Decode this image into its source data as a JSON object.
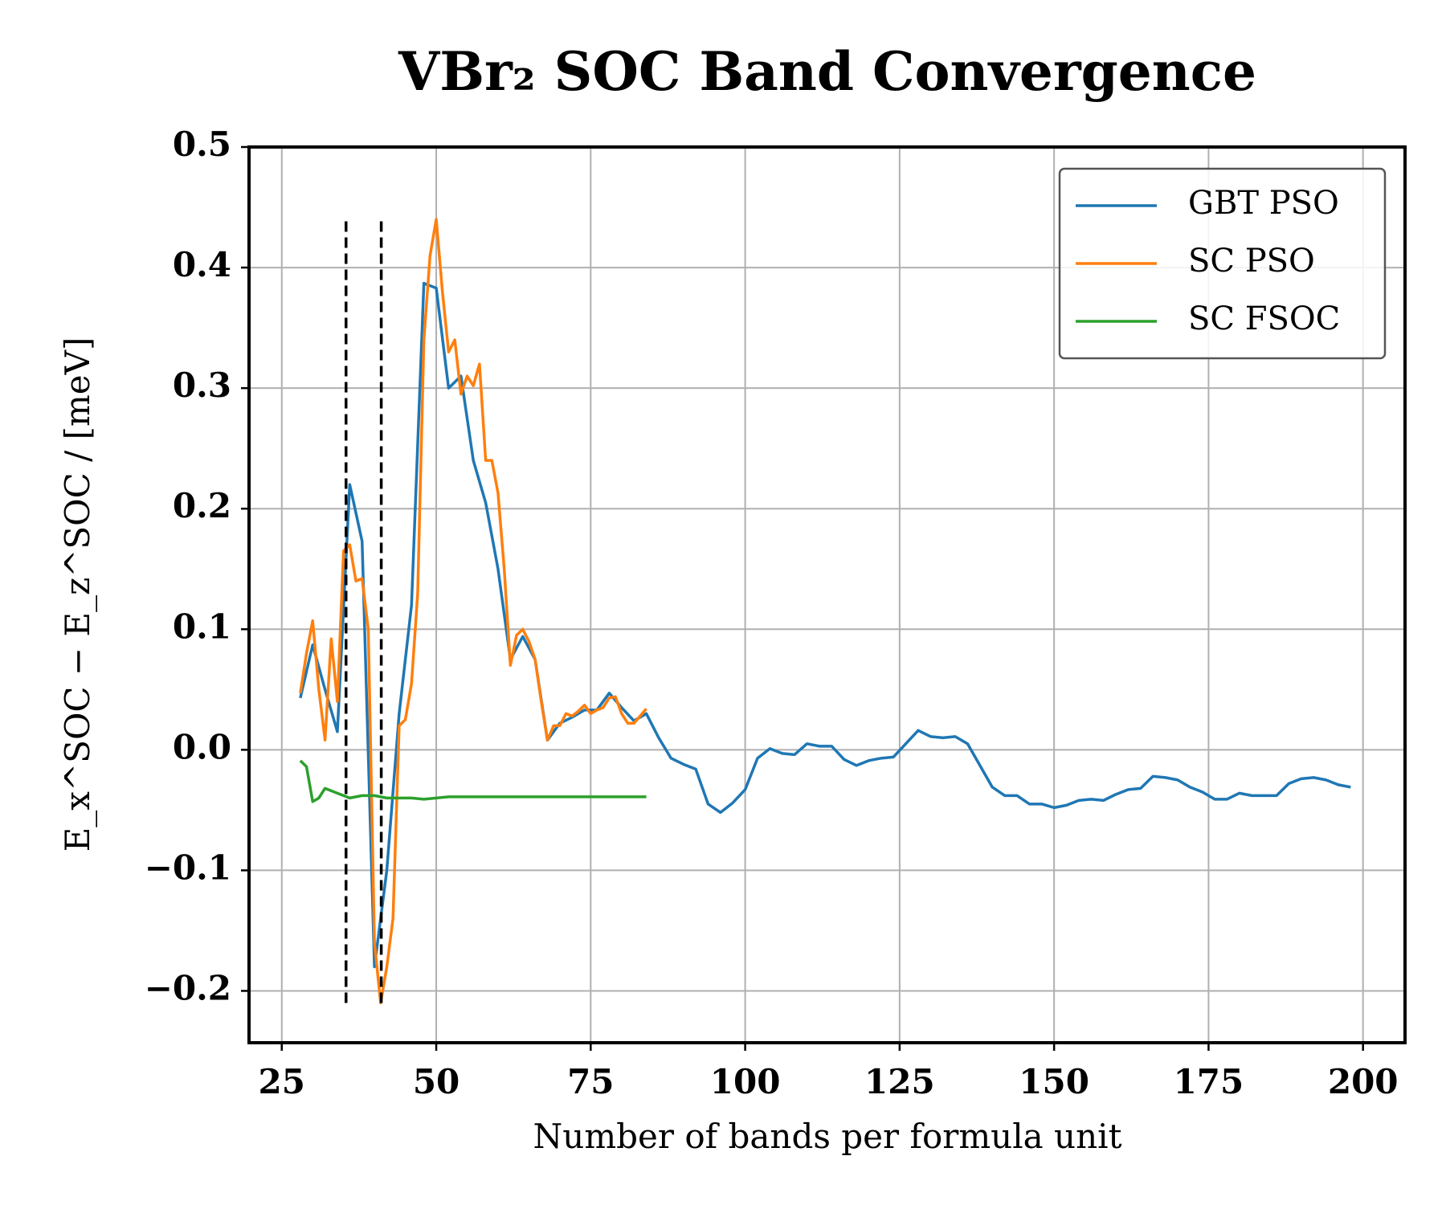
{
  "chart_data": {
    "type": "line",
    "title": "VBr₂ SOC Band Convergence",
    "xlabel": "Number of bands per formula unit",
    "ylabel": "E_x^SOC − E_z^SOC / [meV]",
    "xlim": [
      19.7,
      206.8
    ],
    "ylim": [
      -0.243,
      0.5
    ],
    "xticks": [
      25,
      50,
      75,
      100,
      125,
      150,
      175,
      200
    ],
    "yticks": [
      {
        "value": -0.2,
        "label": "−0.2"
      },
      {
        "value": -0.1,
        "label": "−0.1"
      },
      {
        "value": 0,
        "label": "0.0"
      },
      0.1,
      0.2,
      0.3,
      0.4,
      0.5
    ],
    "grid": true,
    "legend": "upper right",
    "vlines": {
      "x": [
        35.4,
        41.1
      ],
      "range": [
        -0.21,
        0.44
      ],
      "color": "#000000"
    },
    "series": [
      {
        "name": "GBT PSO",
        "color": "#1f77b4",
        "x": [
          28,
          30,
          32,
          34,
          36,
          38,
          40,
          42,
          44,
          46,
          48,
          50,
          52,
          54,
          56,
          58,
          60,
          62,
          64,
          66,
          68,
          70,
          72,
          74,
          76,
          78,
          80,
          82,
          84,
          86,
          88,
          90,
          92,
          94,
          96,
          98,
          100,
          102,
          104,
          106,
          108,
          110,
          112,
          114,
          116,
          118,
          120,
          122,
          124,
          126,
          128,
          130,
          132,
          134,
          136,
          138,
          140,
          142,
          144,
          146,
          148,
          150,
          152,
          154,
          156,
          158,
          160,
          162,
          164,
          166,
          168,
          170,
          172,
          174,
          176,
          178,
          180,
          182,
          184,
          186,
          188,
          190,
          192,
          194,
          196,
          198
        ],
        "values": [
          0.043,
          0.087,
          0.05,
          0.015,
          0.22,
          0.173,
          -0.18,
          -0.1,
          0.03,
          0.12,
          0.387,
          0.383,
          0.3,
          0.31,
          0.24,
          0.205,
          0.15,
          0.075,
          0.094,
          0.075,
          0.008,
          0.022,
          0.027,
          0.033,
          0.033,
          0.047,
          0.035,
          0.024,
          0.03,
          0.01,
          -0.007,
          -0.012,
          -0.016,
          -0.045,
          -0.052,
          -0.044,
          -0.033,
          -0.007,
          0.001,
          -0.003,
          -0.004,
          0.005,
          0.003,
          0.003,
          -0.008,
          -0.013,
          -0.009,
          -0.007,
          -0.006,
          0.005,
          0.016,
          0.011,
          0.01,
          0.011,
          0.005,
          -0.013,
          -0.031,
          -0.038,
          -0.038,
          -0.045,
          -0.045,
          -0.048,
          -0.046,
          -0.042,
          -0.041,
          -0.042,
          -0.037,
          -0.033,
          -0.032,
          -0.022,
          -0.023,
          -0.025,
          -0.031,
          -0.035,
          -0.041,
          -0.041,
          -0.036,
          -0.038,
          -0.038,
          -0.038,
          -0.028,
          -0.024,
          -0.023,
          -0.025,
          -0.029,
          -0.031
        ]
      },
      {
        "name": "SC PSO",
        "color": "#ff7f0e",
        "x": [
          28,
          29,
          30,
          31,
          32,
          33,
          34,
          35,
          36,
          37,
          38,
          39,
          40,
          41,
          42,
          43,
          44,
          45,
          46,
          47,
          48,
          49,
          50,
          51,
          52,
          53,
          54,
          55,
          56,
          57,
          58,
          59,
          60,
          61,
          62,
          63,
          64,
          65,
          66,
          67,
          68,
          69,
          70,
          71,
          72,
          73,
          74,
          75,
          76,
          77,
          78,
          79,
          80,
          81,
          82,
          83,
          84
        ],
        "values": [
          0.047,
          0.08,
          0.107,
          0.05,
          0.008,
          0.092,
          0.04,
          0.165,
          0.17,
          0.14,
          0.142,
          0.1,
          -0.16,
          -0.21,
          -0.18,
          -0.14,
          0.02,
          0.025,
          0.055,
          0.13,
          0.34,
          0.41,
          0.44,
          0.38,
          0.33,
          0.34,
          0.295,
          0.31,
          0.302,
          0.32,
          0.24,
          0.24,
          0.213,
          0.15,
          0.07,
          0.095,
          0.1,
          0.09,
          0.075,
          0.04,
          0.008,
          0.02,
          0.02,
          0.03,
          0.028,
          0.032,
          0.037,
          0.03,
          0.033,
          0.035,
          0.043,
          0.044,
          0.03,
          0.022,
          0.022,
          0.028,
          0.034
        ]
      },
      {
        "name": "SC FSOC",
        "color": "#2ca02c",
        "x": [
          28,
          29,
          30,
          31,
          32,
          34,
          36,
          38,
          40,
          42,
          44,
          46,
          48,
          50,
          52,
          54,
          56,
          58,
          60,
          62,
          64,
          66,
          68,
          70,
          72,
          74,
          76,
          78,
          80,
          82,
          84
        ],
        "values": [
          -0.009,
          -0.014,
          -0.043,
          -0.04,
          -0.032,
          -0.036,
          -0.04,
          -0.038,
          -0.038,
          -0.04,
          -0.04,
          -0.04,
          -0.041,
          -0.04,
          -0.039,
          -0.039,
          -0.039,
          -0.039,
          -0.039,
          -0.039,
          -0.039,
          -0.039,
          -0.039,
          -0.039,
          -0.039,
          -0.039,
          -0.039,
          -0.039,
          -0.039,
          -0.039,
          -0.039
        ]
      }
    ]
  }
}
